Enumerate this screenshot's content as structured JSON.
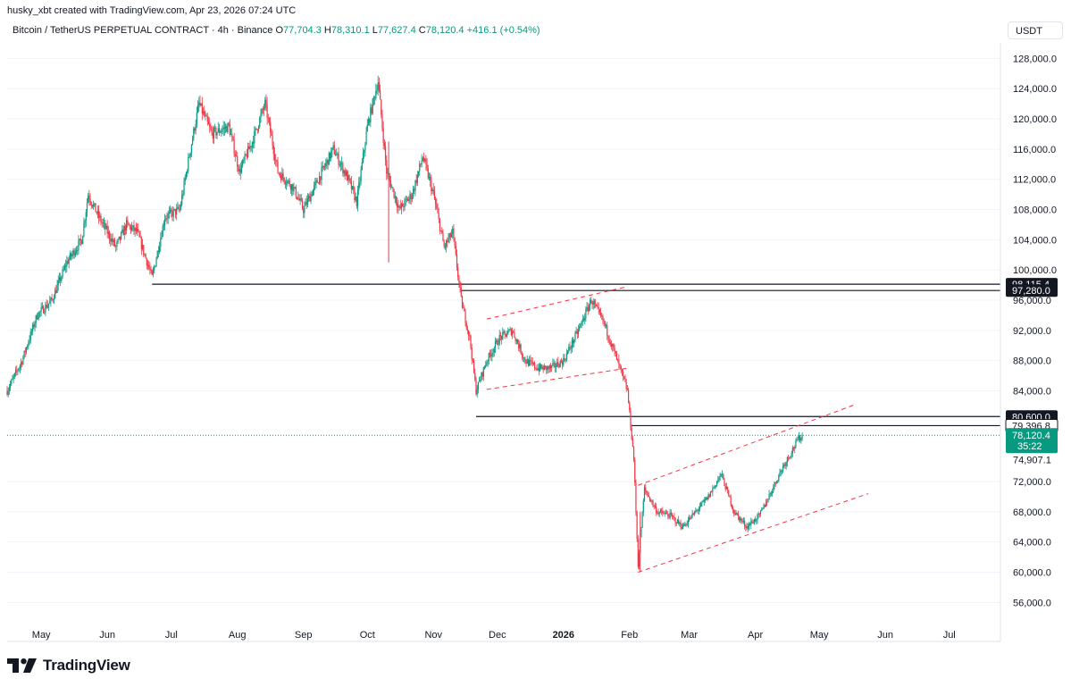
{
  "header": {
    "author_line": "husky_xbt created with TradingView.com, Apr 23, 2026 07:24 UTC",
    "symbol": "Bitcoin / TetherUS PERPETUAL CONTRACT · 4h · Binance",
    "o_label": "O",
    "o_value": "77,704.3",
    "h_label": "H",
    "h_value": "78,310.1",
    "l_label": "L",
    "l_value": "77,627.4",
    "c_label": "C",
    "c_value": "78,120.4",
    "change": "+416.1 (+0.54%)",
    "currency": "USDT"
  },
  "brand": {
    "name": "TradingView",
    "icon": "tradingview-logo-icon"
  },
  "colors": {
    "up": "#089981",
    "down": "#f23645",
    "level": "#131722",
    "channel": "#f23645",
    "last_price": "#089981"
  },
  "chart_data": {
    "type": "candlestick",
    "title": "",
    "xlabel": "",
    "ylabel": "",
    "x_ticks": [
      "May",
      "Jun",
      "Jul",
      "Aug",
      "Sep",
      "Oct",
      "Nov",
      "Dec",
      "2026",
      "Feb",
      "Mar",
      "Apr",
      "May",
      "Jun",
      "Jul"
    ],
    "y_ticks": [
      "128,000.0",
      "124,000.0",
      "120,000.0",
      "116,000.0",
      "112,000.0",
      "108,000.0",
      "104,000.0",
      "100,000.0",
      "96,000.0",
      "92,000.0",
      "88,000.0",
      "84,000.0",
      "72,000.0",
      "68,000.0",
      "64,000.0",
      "60,000.0",
      "56,000.0"
    ],
    "ylim": [
      54000,
      130000
    ],
    "xlim_day_range": [
      "2025-04-15",
      "2026-07-25"
    ],
    "price_path": [
      [
        "2025-04-15",
        84000
      ],
      [
        "2025-04-22",
        88000
      ],
      [
        "2025-04-29",
        94000
      ],
      [
        "2025-05-06",
        96000
      ],
      [
        "2025-05-13",
        101000
      ],
      [
        "2025-05-20",
        104000
      ],
      [
        "2025-05-23",
        110000
      ],
      [
        "2025-05-28",
        107000
      ],
      [
        "2025-06-05",
        103000
      ],
      [
        "2025-06-10",
        106000
      ],
      [
        "2025-06-15",
        105000
      ],
      [
        "2025-06-22",
        99000
      ],
      [
        "2025-06-28",
        107000
      ],
      [
        "2025-07-05",
        108000
      ],
      [
        "2025-07-10",
        116000
      ],
      [
        "2025-07-14",
        122000
      ],
      [
        "2025-07-20",
        118000
      ],
      [
        "2025-07-28",
        119000
      ],
      [
        "2025-08-02",
        113000
      ],
      [
        "2025-08-08",
        117000
      ],
      [
        "2025-08-14",
        122000
      ],
      [
        "2025-08-20",
        113000
      ],
      [
        "2025-08-27",
        111000
      ],
      [
        "2025-09-01",
        108000
      ],
      [
        "2025-09-08",
        112000
      ],
      [
        "2025-09-15",
        116000
      ],
      [
        "2025-09-22",
        112000
      ],
      [
        "2025-09-26",
        109000
      ],
      [
        "2025-10-01",
        119000
      ],
      [
        "2025-10-06",
        125000
      ],
      [
        "2025-10-10",
        113000
      ],
      [
        "2025-10-16",
        108000
      ],
      [
        "2025-10-22",
        110000
      ],
      [
        "2025-10-27",
        115000
      ],
      [
        "2025-11-01",
        110000
      ],
      [
        "2025-11-06",
        103000
      ],
      [
        "2025-11-10",
        105000
      ],
      [
        "2025-11-14",
        96000
      ],
      [
        "2025-11-18",
        91000
      ],
      [
        "2025-11-21",
        84000
      ],
      [
        "2025-11-26",
        88000
      ],
      [
        "2025-12-02",
        91000
      ],
      [
        "2025-12-08",
        92000
      ],
      [
        "2025-12-14",
        88000
      ],
      [
        "2025-12-20",
        87000
      ],
      [
        "2025-12-26",
        87000
      ],
      [
        "2026-01-01",
        88000
      ],
      [
        "2026-01-08",
        92000
      ],
      [
        "2026-01-14",
        96000
      ],
      [
        "2026-01-20",
        93000
      ],
      [
        "2026-01-25",
        89000
      ],
      [
        "2026-01-31",
        84000
      ],
      [
        "2026-02-03",
        75000
      ],
      [
        "2026-02-05",
        61000
      ],
      [
        "2026-02-08",
        71000
      ],
      [
        "2026-02-14",
        68000
      ],
      [
        "2026-02-20",
        67500
      ],
      [
        "2026-02-26",
        66000
      ],
      [
        "2026-03-04",
        68000
      ],
      [
        "2026-03-10",
        70000
      ],
      [
        "2026-03-16",
        73000
      ],
      [
        "2026-03-22",
        68000
      ],
      [
        "2026-03-28",
        66000
      ],
      [
        "2026-04-03",
        67500
      ],
      [
        "2026-04-09",
        71000
      ],
      [
        "2026-04-14",
        74000
      ],
      [
        "2026-04-18",
        76000
      ],
      [
        "2026-04-21",
        77500
      ],
      [
        "2026-04-23",
        78120
      ]
    ],
    "horizontal_levels": [
      {
        "label": "98,115.4",
        "value": 98115.4,
        "from": "2025-06-22",
        "style": "dark"
      },
      {
        "label": "97,280.0",
        "value": 97280.0,
        "from": "2025-11-14",
        "style": "dark"
      },
      {
        "label": "80,600.0",
        "value": 80600.0,
        "from": "2025-11-21",
        "style": "dark"
      },
      {
        "label": "79,396.8",
        "value": 79396.8,
        "from": "2026-02-02",
        "style": "light"
      }
    ],
    "price_scale_labels": [
      {
        "label": "74,907.1",
        "value": 74907.1
      }
    ],
    "last_price": {
      "label": "78,120.4",
      "countdown": "35:22",
      "value": 78120.4
    },
    "channels": [
      {
        "name": "",
        "upper": [
          [
            "2025-11-26",
            93500
          ],
          [
            "2026-01-31",
            97800
          ]
        ],
        "lower": [
          [
            "2025-11-26",
            84200
          ],
          [
            "2026-01-31",
            87000
          ]
        ]
      },
      {
        "name": "",
        "upper": [
          [
            "2026-02-05",
            71500
          ],
          [
            "2026-05-17",
            82100
          ]
        ],
        "lower": [
          [
            "2026-02-05",
            60000
          ],
          [
            "2026-05-24",
            70400
          ]
        ]
      }
    ]
  }
}
